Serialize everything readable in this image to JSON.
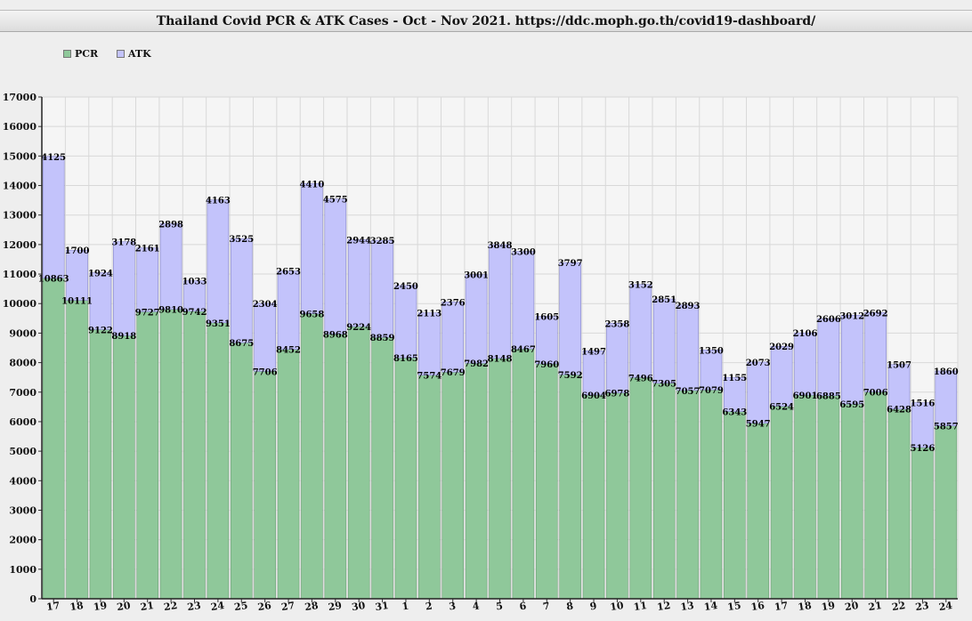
{
  "window": {
    "title": "Thailand Covid PCR & ATK Cases - Oct - Nov 2021. https://ddc.moph.go.th/covid19-dashboard/"
  },
  "colors": {
    "pcr": "#8fc89a",
    "atk": "#c3c3fb",
    "plot_background": "#f5f5f5",
    "grid": "#d8d8d8"
  },
  "chart_data": {
    "type": "bar",
    "stacked": true,
    "title": "Thailand Covid PCR & ATK Cases - Oct - Nov 2021. https://ddc.moph.go.th/covid19-dashboard/",
    "xlabel": "",
    "ylabel": "",
    "ylim": [
      0,
      17000
    ],
    "yticks": [
      0,
      1000,
      2000,
      3000,
      4000,
      5000,
      6000,
      7000,
      8000,
      9000,
      10000,
      11000,
      12000,
      13000,
      14000,
      15000,
      16000,
      17000
    ],
    "grid": true,
    "legend_position": "top-left",
    "categories": [
      "17",
      "18",
      "19",
      "20",
      "21",
      "22",
      "23",
      "24",
      "25",
      "26",
      "27",
      "28",
      "29",
      "30",
      "31",
      "1",
      "2",
      "3",
      "4",
      "5",
      "6",
      "7",
      "8",
      "9",
      "10",
      "11",
      "12",
      "13",
      "14",
      "15",
      "16",
      "17",
      "18",
      "19",
      "20",
      "21",
      "22",
      "23",
      "24"
    ],
    "series": [
      {
        "name": "PCR",
        "values": [
          10863,
          10111,
          9122,
          8918,
          9727,
          9810,
          9742,
          9351,
          8675,
          7706,
          8452,
          9658,
          8968,
          9224,
          8859,
          8165,
          7574,
          7679,
          7982,
          8148,
          8467,
          7960,
          7592,
          6904,
          6978,
          7496,
          7305,
          7057,
          7079,
          6343,
          5947,
          6524,
          6901,
          6885,
          6595,
          7006,
          6428,
          5126,
          5857
        ]
      },
      {
        "name": "ATK",
        "values": [
          4125,
          1700,
          1924,
          3178,
          2161,
          2898,
          1033,
          4163,
          3525,
          2304,
          2653,
          4410,
          4575,
          2944,
          3285,
          2450,
          2113,
          2376,
          3001,
          3848,
          3300,
          1605,
          3797,
          1497,
          2358,
          3152,
          2851,
          2893,
          1350,
          1155,
          2073,
          2029,
          2106,
          2606,
          3012,
          2692,
          1507,
          1516,
          1860
        ]
      }
    ]
  }
}
